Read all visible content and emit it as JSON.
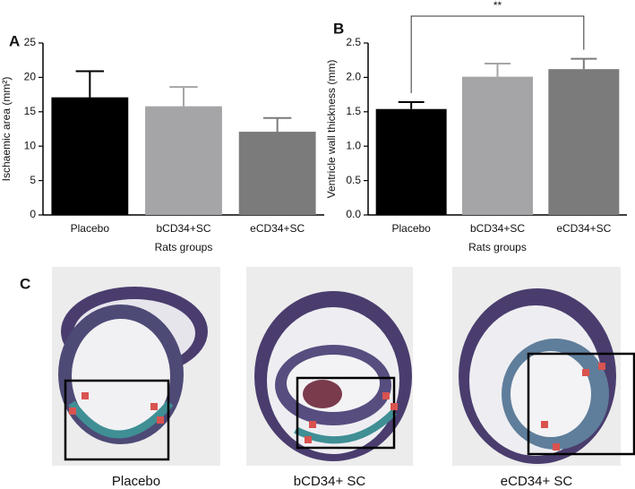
{
  "chart_data": [
    {
      "type": "bar",
      "panel": "A",
      "ylabel": "Ischaemic area (mm²)",
      "xlabel": "Rats groups",
      "categories": [
        "Placebo",
        "bCD34+SC",
        "eCD34+SC"
      ],
      "values": [
        17.1,
        15.8,
        12.1
      ],
      "errors": [
        3.8,
        2.8,
        2.0
      ],
      "colors": [
        "#000000",
        "#a5a5a7",
        "#7b7b7b"
      ],
      "ylim": [
        0,
        25
      ],
      "yticks": [
        0,
        5,
        10,
        15,
        20,
        25
      ]
    },
    {
      "type": "bar",
      "panel": "B",
      "ylabel": "Ventricle wall thickness (mm)",
      "xlabel": "Rats groups",
      "categories": [
        "Placebo",
        "bCD34+SC",
        "eCD34+SC"
      ],
      "values": [
        1.54,
        2.01,
        2.12
      ],
      "errors": [
        0.1,
        0.19,
        0.15
      ],
      "colors": [
        "#000000",
        "#a5a5a7",
        "#7b7b7b"
      ],
      "ylim": [
        0,
        2.5
      ],
      "yticks": [
        {
          "value": 0,
          "label": "0.0"
        },
        0.5,
        {
          "value": 1,
          "label": "1.0"
        },
        1.5,
        {
          "value": 2,
          "label": "2.0"
        },
        2.5
      ],
      "significance": "**"
    }
  ],
  "figure_c": {
    "panel": "C",
    "captions": [
      "Placebo",
      "bCD34+ SC",
      "eCD34+ SC"
    ]
  }
}
